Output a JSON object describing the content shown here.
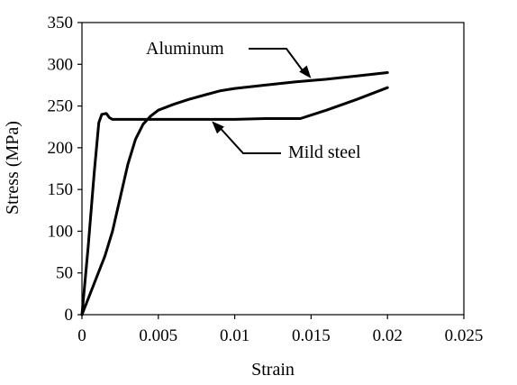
{
  "chart_data": {
    "type": "line",
    "title": "",
    "xlabel": "Strain",
    "ylabel": "Stress (MPa)",
    "xlim": [
      0,
      0.025
    ],
    "ylim": [
      0,
      350
    ],
    "x_ticks": [
      0,
      0.005,
      0.01,
      0.015,
      0.02,
      0.025
    ],
    "x_tick_labels": [
      "0",
      "0.005",
      "0.01",
      "0.015",
      "0.02",
      "0.025"
    ],
    "y_ticks": [
      0,
      50,
      100,
      150,
      200,
      250,
      300,
      350
    ],
    "y_tick_labels": [
      "0",
      "50",
      "100",
      "150",
      "200",
      "250",
      "300",
      "350"
    ],
    "grid": false,
    "line_color": "#000000",
    "series": [
      {
        "name": "Aluminum",
        "points": [
          [
            0,
            0
          ],
          [
            0.0015,
            70
          ],
          [
            0.002,
            100
          ],
          [
            0.0025,
            140
          ],
          [
            0.003,
            180
          ],
          [
            0.0035,
            210
          ],
          [
            0.004,
            228
          ],
          [
            0.0045,
            238
          ],
          [
            0.005,
            245
          ],
          [
            0.006,
            252
          ],
          [
            0.007,
            258
          ],
          [
            0.008,
            263
          ],
          [
            0.009,
            268
          ],
          [
            0.01,
            271
          ],
          [
            0.012,
            275
          ],
          [
            0.014,
            279
          ],
          [
            0.016,
            282
          ],
          [
            0.018,
            286
          ],
          [
            0.02,
            290
          ]
        ]
      },
      {
        "name": "Mild steel",
        "points": [
          [
            0,
            0
          ],
          [
            0.0004,
            80
          ],
          [
            0.0008,
            170
          ],
          [
            0.0011,
            230
          ],
          [
            0.0013,
            240
          ],
          [
            0.0016,
            241
          ],
          [
            0.0018,
            236
          ],
          [
            0.002,
            234
          ],
          [
            0.005,
            234
          ],
          [
            0.008,
            234
          ],
          [
            0.01,
            234
          ],
          [
            0.012,
            235
          ],
          [
            0.0143,
            235
          ],
          [
            0.016,
            245
          ],
          [
            0.018,
            258
          ],
          [
            0.02,
            272
          ]
        ]
      }
    ],
    "annotations": [
      {
        "text": "Aluminum",
        "points_to_x": 0.015,
        "points_to_y": 281
      },
      {
        "text": "Mild steel",
        "points_to_x": 0.0085,
        "points_to_y": 234
      }
    ]
  }
}
